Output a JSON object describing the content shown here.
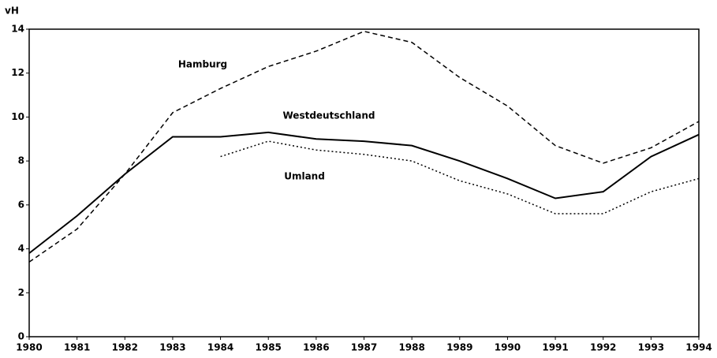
{
  "chart_data": {
    "type": "line",
    "y_label": "vH",
    "x": [
      1980,
      1981,
      1982,
      1983,
      1984,
      1985,
      1986,
      1987,
      1988,
      1989,
      1990,
      1991,
      1992,
      1993,
      1994
    ],
    "xlim": [
      1980,
      1994
    ],
    "xticks": [
      1980,
      1981,
      1982,
      1983,
      1984,
      1985,
      1986,
      1987,
      1988,
      1989,
      1990,
      1991,
      1992,
      1993,
      1994
    ],
    "ylim": [
      0,
      14
    ],
    "yticks": [
      0,
      2,
      4,
      6,
      8,
      10,
      12,
      14
    ],
    "grid": false,
    "series": [
      {
        "name": "Hamburg",
        "color": "#000000",
        "dash": "dashed",
        "values": [
          3.4,
          4.9,
          7.4,
          10.2,
          11.3,
          12.3,
          13.0,
          13.9,
          13.4,
          11.8,
          10.5,
          8.7,
          7.9,
          8.6,
          9.8
        ]
      },
      {
        "name": "Westdeutschland",
        "color": "#000000",
        "dash": "solid",
        "values": [
          3.8,
          5.5,
          7.4,
          9.1,
          9.1,
          9.3,
          9.0,
          8.9,
          8.7,
          8.0,
          7.2,
          6.3,
          6.6,
          8.2,
          9.2
        ]
      },
      {
        "name": "Umland",
        "color": "#000000",
        "dash": "dotted",
        "values": [
          null,
          null,
          null,
          null,
          8.2,
          8.9,
          8.5,
          8.3,
          8.0,
          7.1,
          6.5,
          5.6,
          5.6,
          6.6,
          7.2
        ]
      }
    ]
  }
}
